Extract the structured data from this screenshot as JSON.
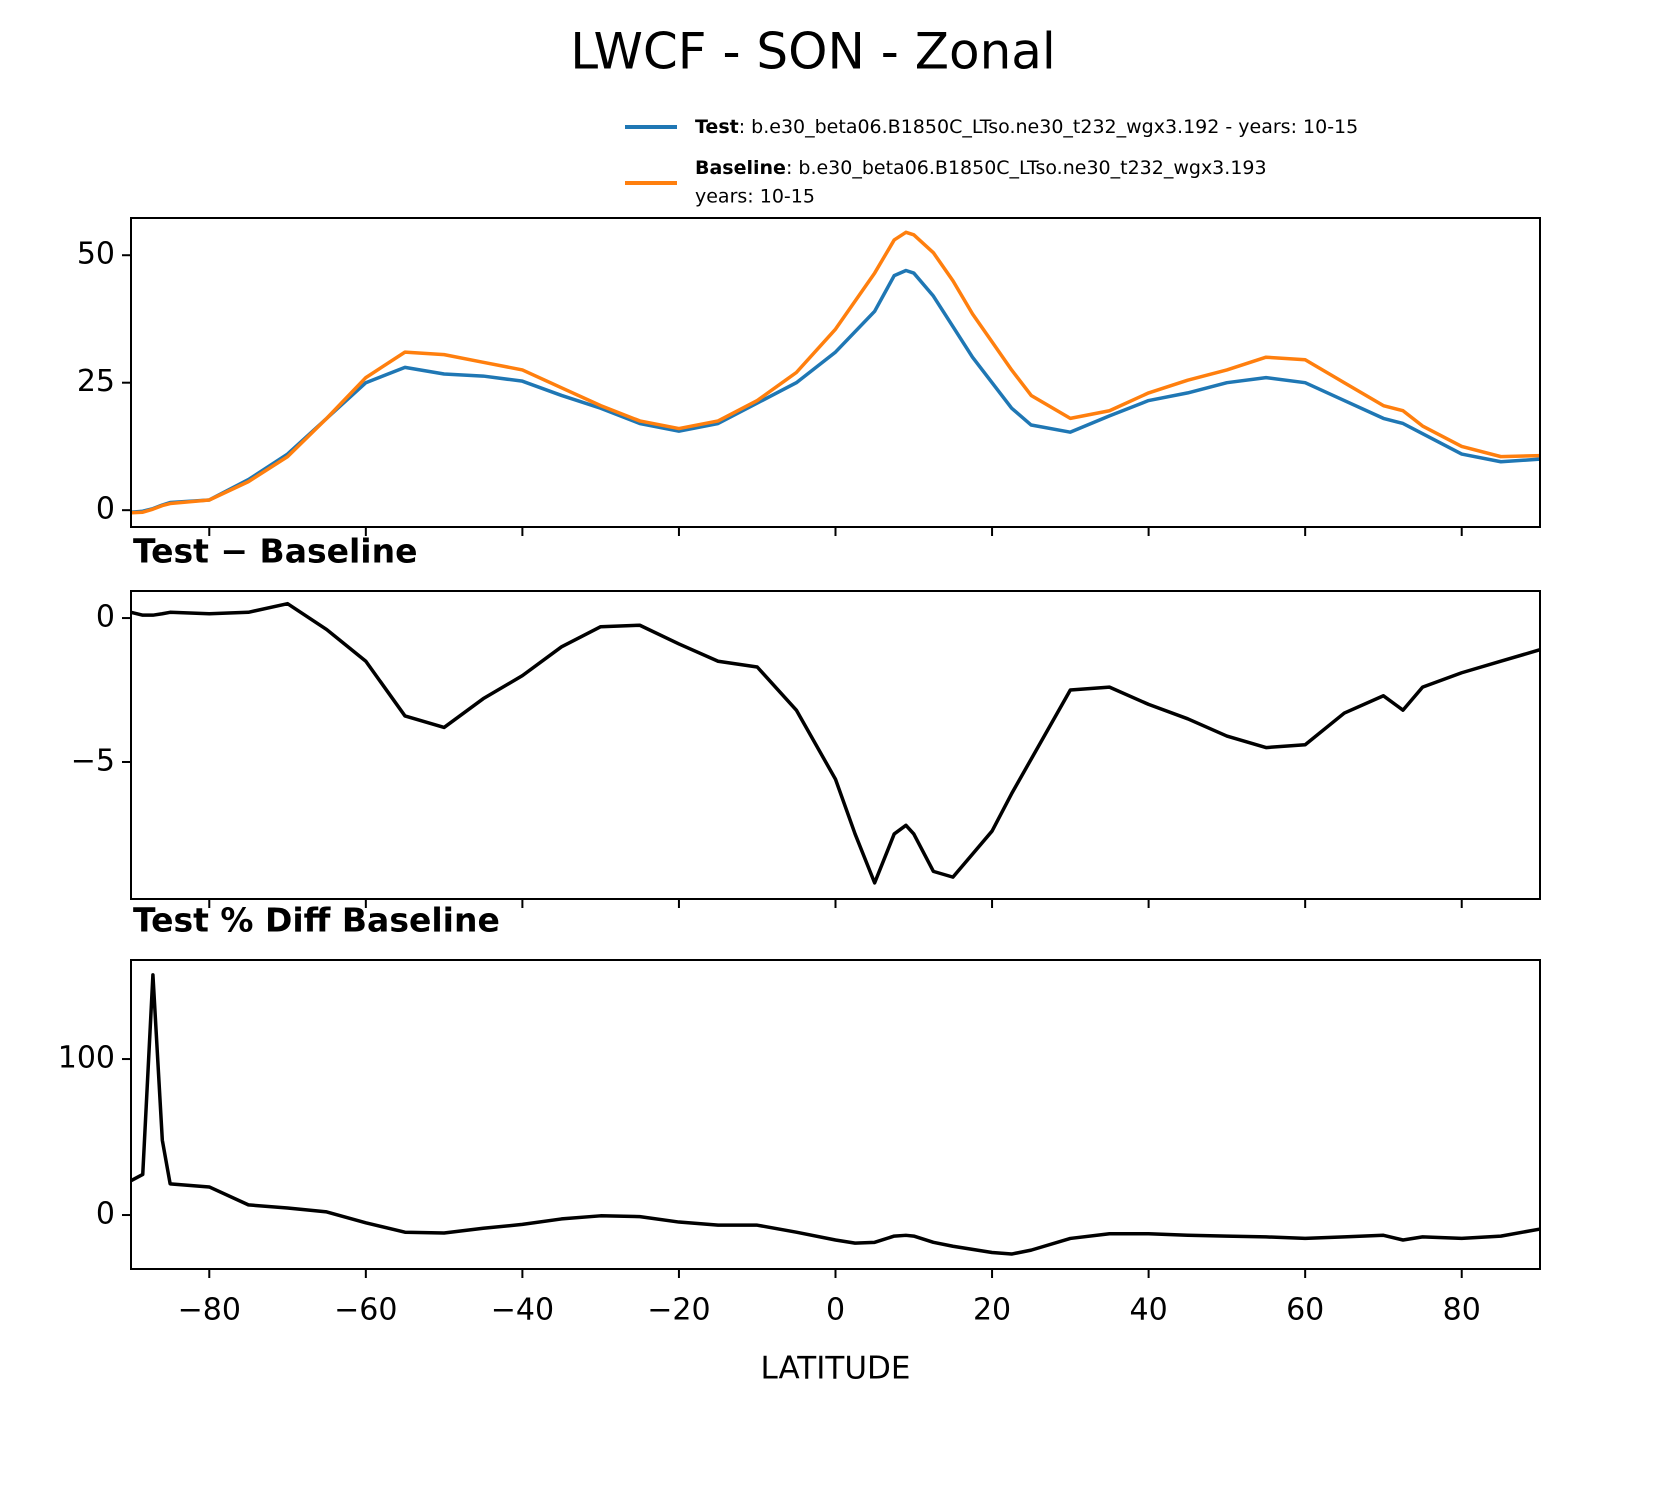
{
  "title": "LWCF - SON - Zonal",
  "chart_data": [
    {
      "type": "line",
      "x": [
        -90,
        -88.5,
        -87.2,
        -86,
        -85,
        -80,
        -75,
        -70,
        -65,
        -60,
        -55,
        -50,
        -45,
        -40,
        -35,
        -30,
        -25,
        -20,
        -15,
        -10,
        -5,
        0,
        2.5,
        5,
        7.5,
        9,
        10,
        12.5,
        15,
        17.5,
        20,
        22.5,
        25,
        30,
        35,
        40,
        45,
        50,
        55,
        60,
        65,
        70,
        72.5,
        75,
        80,
        85,
        90
      ],
      "series": [
        {
          "name": "Test",
          "description_lines": [
            ": b.e30_beta06.B1850C_LTso.ne30_t232_wgx3.192 - years: 10-15"
          ],
          "color": "#1f77b4",
          "values": [
            -0.4,
            -0.2,
            0.3,
            1.0,
            1.5,
            2,
            6,
            11,
            18,
            25,
            28,
            26.7,
            26.3,
            25.3,
            22.5,
            20,
            17,
            15.5,
            17,
            21,
            25,
            31,
            35,
            39,
            46,
            47,
            46.5,
            42,
            36,
            30,
            25,
            20,
            16.7,
            15.3,
            18.5,
            21.5,
            23,
            25,
            26,
            25,
            21.5,
            18,
            17,
            15,
            11,
            9.5,
            10
          ]
        },
        {
          "name": "Baseline",
          "description_lines": [
            ": b.e30_beta06.B1850C_LTso.ne30_t232_wgx3.193",
            "years: 10-15"
          ],
          "color": "#ff7f0e",
          "values": [
            -0.5,
            -0.4,
            0.2,
            0.9,
            1.3,
            2,
            5.6,
            10.5,
            18,
            26,
            31,
            30.5,
            29,
            27.5,
            24,
            20.5,
            17.5,
            16,
            17.5,
            21.5,
            27,
            35.5,
            41,
            46.5,
            53,
            54.5,
            54,
            50.5,
            45,
            38.5,
            33,
            27.5,
            22.5,
            18,
            19.5,
            23,
            25.5,
            27.5,
            30,
            29.5,
            25,
            20.5,
            19.5,
            16.5,
            12.5,
            10.5,
            10.7
          ]
        }
      ],
      "legend": "above",
      "xlim": [
        -90,
        90
      ],
      "ylim": [
        -3.3,
        57.3
      ],
      "xticks": [
        {
          "value": -80,
          "label": "−80"
        },
        {
          "value": -60,
          "label": "−60"
        },
        {
          "value": -40,
          "label": "−40"
        },
        {
          "value": -20,
          "label": "−20"
        },
        0,
        20,
        40,
        60,
        80
      ],
      "xtick_labels": false,
      "yticks": [
        0,
        25,
        50
      ]
    },
    {
      "type": "line",
      "title": "Test − Baseline",
      "x": [
        -90,
        -88.5,
        -87.2,
        -86,
        -85,
        -80,
        -75,
        -70,
        -65,
        -60,
        -55,
        -50,
        -45,
        -40,
        -35,
        -30,
        -25,
        -20,
        -15,
        -10,
        -5,
        0,
        2.5,
        5,
        7.5,
        9,
        10,
        12.5,
        15,
        17.5,
        20,
        22.5,
        25,
        30,
        35,
        40,
        45,
        50,
        55,
        60,
        65,
        70,
        72.5,
        75,
        80,
        85,
        90
      ],
      "series": [
        {
          "color": "#000000",
          "values": [
            0.2,
            0.1,
            0.1,
            0.15,
            0.2,
            0.15,
            0.2,
            0.5,
            -0.4,
            -1.5,
            -3.4,
            -3.8,
            -2.8,
            -2.0,
            -1.0,
            -0.3,
            -0.25,
            -0.9,
            -1.5,
            -1.7,
            -3.2,
            -5.6,
            -7.5,
            -9.2,
            -7.5,
            -7.2,
            -7.5,
            -8.8,
            -9.0,
            -8.2,
            -7.4,
            -6.1,
            -4.9,
            -2.5,
            -2.4,
            -3.0,
            -3.5,
            -4.1,
            -4.5,
            -4.4,
            -3.3,
            -2.7,
            -3.2,
            -2.4,
            -1.9,
            -1.5,
            -1.1
          ]
        }
      ],
      "xlim": [
        -90,
        90
      ],
      "ylim": [
        -9.76,
        0.94
      ],
      "xticks": [
        {
          "value": -80,
          "label": "−80"
        },
        {
          "value": -60,
          "label": "−60"
        },
        {
          "value": -40,
          "label": "−40"
        },
        {
          "value": -20,
          "label": "−20"
        },
        0,
        20,
        40,
        60,
        80
      ],
      "xtick_labels": false,
      "yticks": [
        {
          "value": -5,
          "label": "−5"
        },
        0
      ]
    },
    {
      "type": "line",
      "title": "Test % Diff Baseline",
      "xlabel": "LATITUDE",
      "x": [
        -90,
        -88.5,
        -87.2,
        -86,
        -85,
        -80,
        -75,
        -70,
        -65,
        -60,
        -55,
        -50,
        -45,
        -40,
        -35,
        -30,
        -25,
        -20,
        -15,
        -10,
        -5,
        0,
        2.5,
        5,
        7.5,
        9,
        10,
        12.5,
        15,
        17.5,
        20,
        22.5,
        25,
        30,
        35,
        40,
        45,
        50,
        55,
        60,
        65,
        70,
        72.5,
        75,
        80,
        85,
        90
      ],
      "series": [
        {
          "color": "#000000",
          "values": [
            22,
            26,
            154,
            48,
            20,
            18,
            6.5,
            4.5,
            2,
            -5,
            -11,
            -11.5,
            -8.5,
            -6,
            -2.5,
            -0.5,
            -1,
            -4.5,
            -6.5,
            -6.5,
            -11,
            -16,
            -18,
            -17.5,
            -13.5,
            -13,
            -13.5,
            -17.5,
            -20,
            -22,
            -24,
            -25,
            -22.5,
            -15,
            -12,
            -12,
            -13,
            -13.5,
            -14,
            -15,
            -14,
            -13,
            -16,
            -14,
            -15,
            -13.5,
            -9
          ]
        }
      ],
      "xlim": [
        -90,
        90
      ],
      "ylim": [
        -34.6,
        163.5
      ],
      "xticks": [
        {
          "value": -80,
          "label": "−80"
        },
        {
          "value": -60,
          "label": "−60"
        },
        {
          "value": -40,
          "label": "−40"
        },
        {
          "value": -20,
          "label": "−20"
        },
        0,
        20,
        40,
        60,
        80
      ],
      "xtick_labels": true,
      "yticks": [
        0,
        100
      ]
    }
  ]
}
